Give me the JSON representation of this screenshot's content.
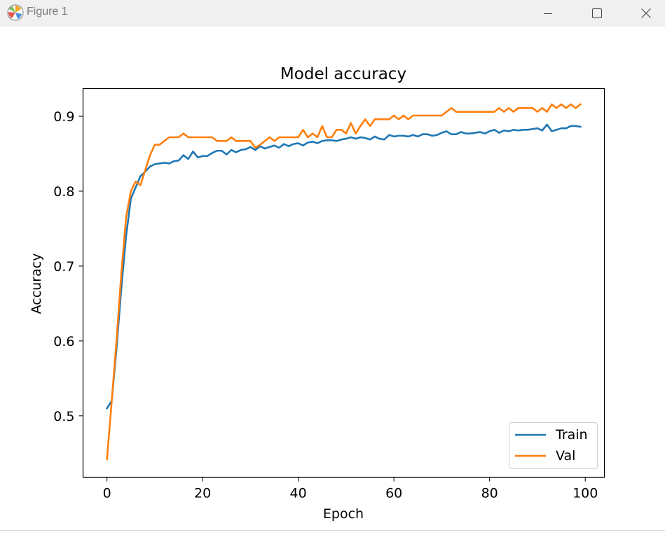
{
  "window": {
    "title": "Figure 1",
    "icons": {
      "app": "matplotlib-logo-icon",
      "minimize": "minimize-icon",
      "maximize": "maximize-icon",
      "close": "close-icon"
    }
  },
  "chart_data": {
    "type": "line",
    "title": "Model accuracy",
    "xlabel": "Epoch",
    "ylabel": "Accuracy",
    "xlim": [
      -5,
      104
    ],
    "ylim": [
      0.418,
      0.937
    ],
    "xticks": [
      0,
      20,
      40,
      60,
      80,
      100
    ],
    "yticks": [
      0.5,
      0.6,
      0.7,
      0.8,
      0.9
    ],
    "xtick_labels": [
      "0",
      "20",
      "40",
      "60",
      "80",
      "100"
    ],
    "ytick_labels": [
      "0.5",
      "0.6",
      "0.7",
      "0.8",
      "0.9"
    ],
    "grid": false,
    "legend_position": "lower right",
    "series": [
      {
        "name": "Train",
        "color": "#1f77b4",
        "values": [
          0.51,
          0.52,
          0.59,
          0.67,
          0.74,
          0.79,
          0.805,
          0.82,
          0.826,
          0.833,
          0.836,
          0.837,
          0.838,
          0.837,
          0.84,
          0.841,
          0.848,
          0.843,
          0.853,
          0.845,
          0.847,
          0.847,
          0.851,
          0.854,
          0.854,
          0.849,
          0.855,
          0.852,
          0.855,
          0.856,
          0.859,
          0.855,
          0.86,
          0.857,
          0.859,
          0.861,
          0.858,
          0.863,
          0.86,
          0.863,
          0.864,
          0.861,
          0.865,
          0.866,
          0.864,
          0.867,
          0.868,
          0.868,
          0.867,
          0.869,
          0.87,
          0.872,
          0.87,
          0.872,
          0.871,
          0.869,
          0.873,
          0.87,
          0.869,
          0.875,
          0.873,
          0.874,
          0.874,
          0.873,
          0.875,
          0.873,
          0.876,
          0.876,
          0.874,
          0.875,
          0.878,
          0.88,
          0.876,
          0.876,
          0.879,
          0.877,
          0.877,
          0.878,
          0.879,
          0.877,
          0.88,
          0.882,
          0.878,
          0.881,
          0.88,
          0.882,
          0.881,
          0.882,
          0.882,
          0.883,
          0.884,
          0.881,
          0.889,
          0.88,
          0.882,
          0.884,
          0.884,
          0.887,
          0.887,
          0.886
        ]
      },
      {
        "name": "Val",
        "color": "#ff7f0e",
        "values": [
          0.442,
          0.52,
          0.6,
          0.69,
          0.765,
          0.8,
          0.813,
          0.808,
          0.828,
          0.848,
          0.862,
          0.862,
          0.867,
          0.872,
          0.872,
          0.872,
          0.877,
          0.872,
          0.872,
          0.872,
          0.872,
          0.872,
          0.872,
          0.867,
          0.867,
          0.867,
          0.872,
          0.867,
          0.867,
          0.867,
          0.867,
          0.858,
          0.862,
          0.867,
          0.872,
          0.867,
          0.872,
          0.872,
          0.872,
          0.872,
          0.872,
          0.882,
          0.872,
          0.877,
          0.872,
          0.887,
          0.872,
          0.872,
          0.882,
          0.882,
          0.877,
          0.891,
          0.877,
          0.887,
          0.896,
          0.887,
          0.896,
          0.896,
          0.896,
          0.896,
          0.901,
          0.896,
          0.901,
          0.896,
          0.901,
          0.901,
          0.901,
          0.901,
          0.901,
          0.901,
          0.901,
          0.906,
          0.911,
          0.906,
          0.906,
          0.906,
          0.906,
          0.906,
          0.906,
          0.906,
          0.906,
          0.906,
          0.911,
          0.906,
          0.911,
          0.906,
          0.911,
          0.911,
          0.911,
          0.911,
          0.906,
          0.911,
          0.906,
          0.916,
          0.911,
          0.916,
          0.911,
          0.916,
          0.911,
          0.916
        ]
      }
    ]
  }
}
